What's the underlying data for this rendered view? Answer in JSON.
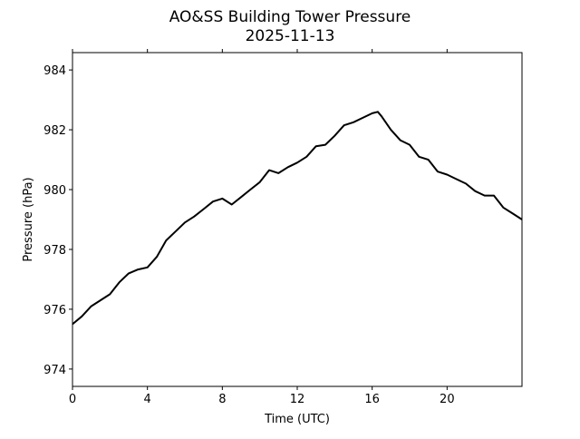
{
  "chart_data": {
    "type": "line",
    "title": "AO&SS Building Tower Pressure",
    "subtitle": "2025-11-13",
    "xlabel": "Time (UTC)",
    "ylabel": "Pressure (hPa)",
    "xlim": [
      0,
      24
    ],
    "ylim": [
      973.42,
      984.58
    ],
    "xticks": [
      0,
      4,
      8,
      12,
      16,
      20
    ],
    "yticks": [
      974,
      976,
      978,
      980,
      982,
      984
    ],
    "grid": false,
    "line_color": "#000000",
    "series": [
      {
        "x": [
          0,
          0.5,
          1,
          1.5,
          2,
          2.5,
          3,
          3.5,
          4,
          4.5,
          5,
          5.5,
          6,
          6.5,
          7,
          7.5,
          8,
          8.5,
          9,
          9.5,
          10,
          10.5,
          11,
          11.5,
          12,
          12.5,
          13,
          13.5,
          14,
          14.5,
          15,
          15.5,
          16,
          16.3,
          16.5,
          17,
          17.5,
          18,
          18.5,
          19,
          19.5,
          20,
          20.5,
          21,
          21.5,
          22,
          22.5,
          23,
          23.5,
          24
        ],
        "y": [
          975.5,
          975.76,
          976.1,
          976.3,
          976.5,
          976.9,
          977.2,
          977.33,
          977.4,
          977.75,
          978.3,
          978.6,
          978.9,
          979.1,
          979.35,
          979.6,
          979.7,
          979.5,
          979.75,
          980.0,
          980.25,
          980.65,
          980.55,
          980.75,
          980.9,
          981.1,
          981.45,
          981.5,
          981.8,
          982.15,
          982.25,
          982.4,
          982.55,
          982.6,
          982.45,
          982.0,
          981.65,
          981.5,
          981.1,
          981.0,
          980.6,
          980.5,
          980.35,
          980.2,
          979.95,
          979.8,
          979.8,
          979.4,
          979.2,
          979.0
        ]
      }
    ]
  }
}
